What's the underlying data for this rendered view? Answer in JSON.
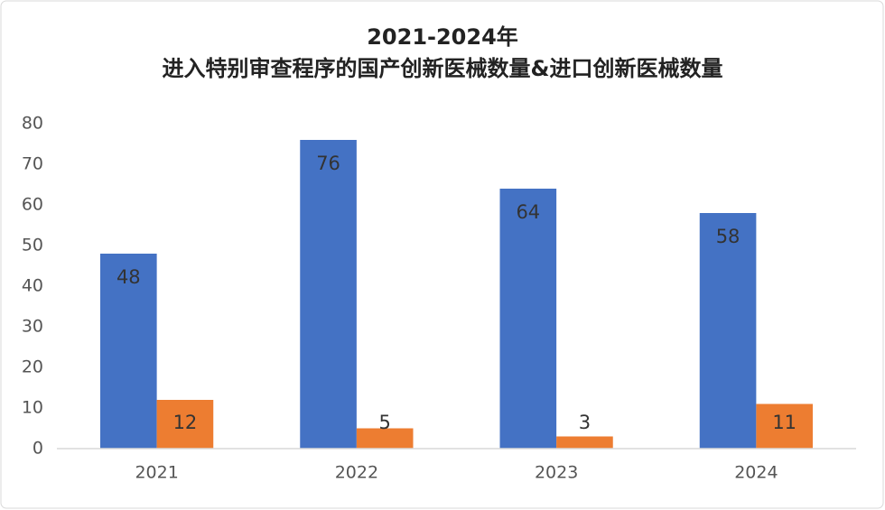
{
  "chart_data": {
    "type": "bar",
    "title": [
      "2021-2024年",
      "进入特别审查程序的国产创新医械数量&进口创新医械数量"
    ],
    "categories": [
      "2021",
      "2022",
      "2023",
      "2024"
    ],
    "series": [
      {
        "color": "#4472c4",
        "values": [
          48,
          76,
          64,
          58
        ]
      },
      {
        "color": "#ed7d31",
        "values": [
          12,
          5,
          3,
          11
        ]
      }
    ],
    "ylim": [
      0,
      80
    ],
    "yticks": [
      0,
      10,
      20,
      30,
      40,
      50,
      60,
      70,
      80
    ],
    "grid": false
  }
}
